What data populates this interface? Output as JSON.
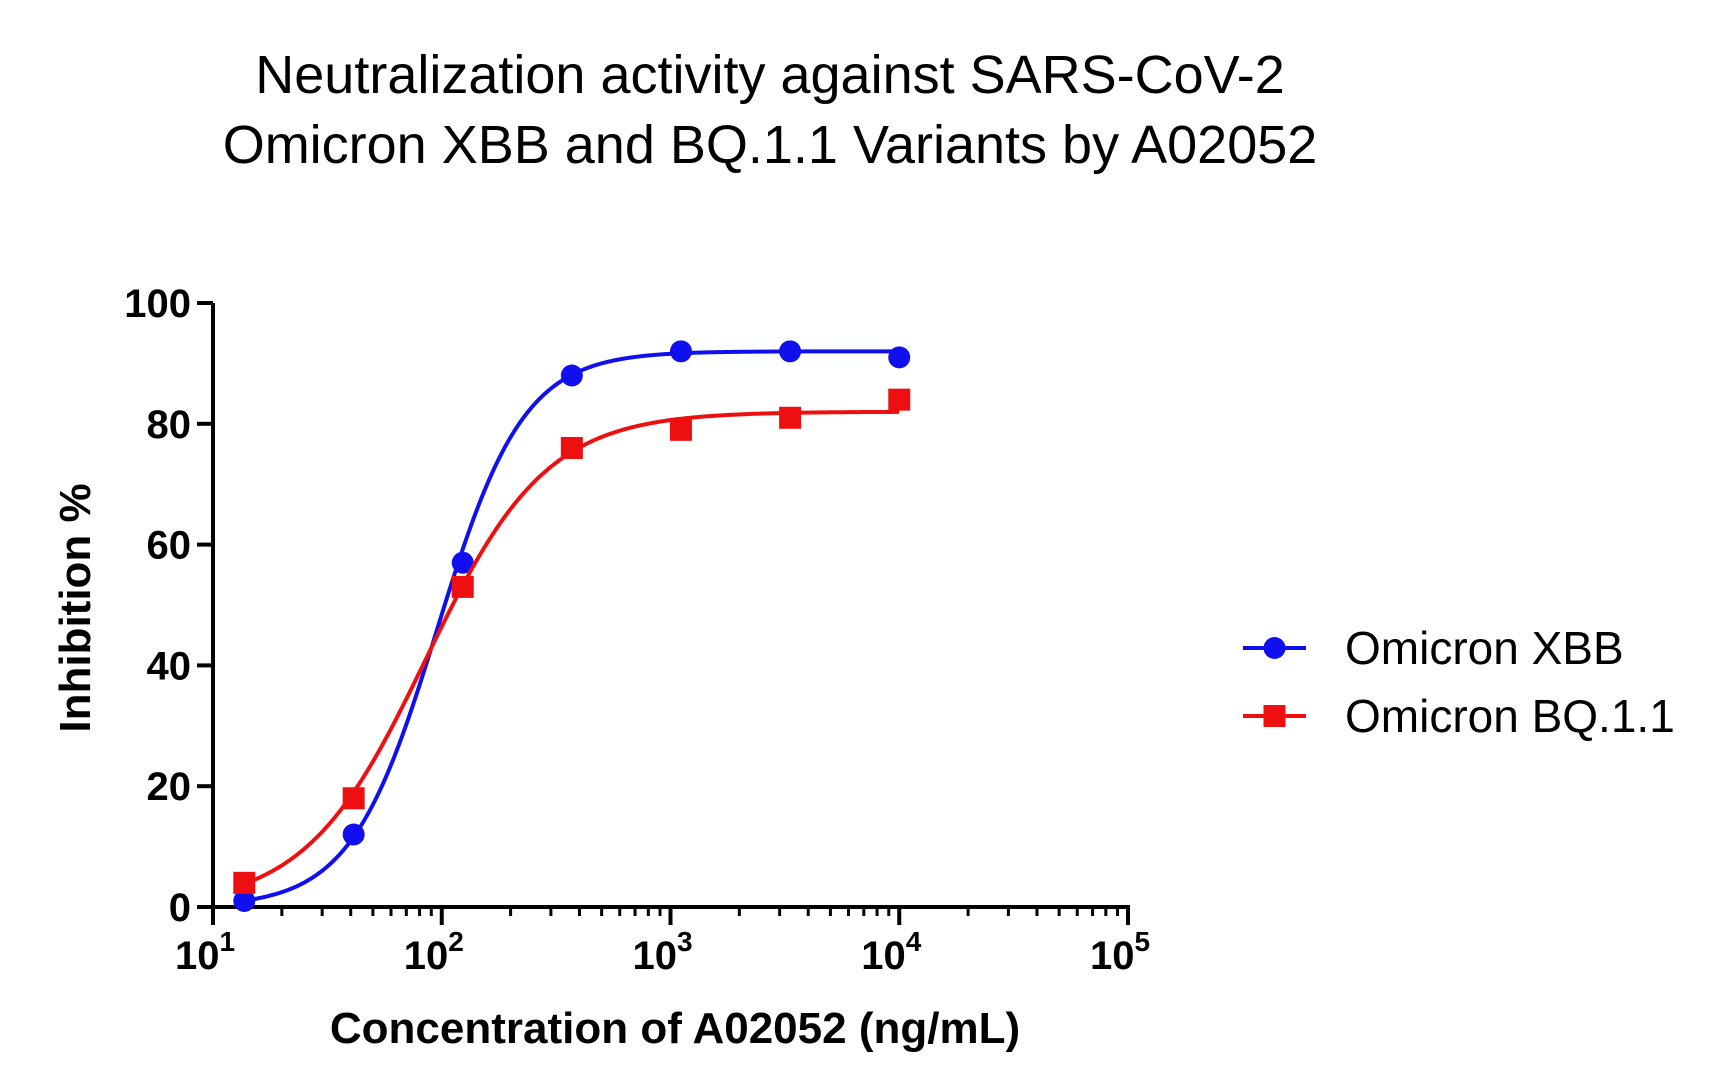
{
  "chart_data": {
    "type": "scatter",
    "title": [
      "Neutralization activity against SARS-CoV-2",
      "Omicron XBB and BQ.1.1 Variants by A02052"
    ],
    "xlabel": "Concentration of A02052 (ng/mL)",
    "ylabel": "Inhibition %",
    "x_scale": "log",
    "xlim": [
      10,
      100000
    ],
    "ylim": [
      0,
      100
    ],
    "x_ticks": [
      {
        "value": 10,
        "base": "10",
        "exp": "1"
      },
      {
        "value": 100,
        "base": "10",
        "exp": "2"
      },
      {
        "value": 1000,
        "base": "10",
        "exp": "3"
      },
      {
        "value": 10000,
        "base": "10",
        "exp": "4"
      },
      {
        "value": 100000,
        "base": "10",
        "exp": "5"
      }
    ],
    "y_ticks": [
      0,
      20,
      40,
      60,
      80,
      100
    ],
    "grid": false,
    "legend_position": "right",
    "series": [
      {
        "name": "Omicron XBB",
        "color": "#1010ee",
        "marker": "circle",
        "x": [
          13.7,
          41.2,
          123.5,
          370.4,
          1111,
          3333,
          10000
        ],
        "y": [
          1,
          12,
          57,
          88,
          92,
          92,
          91
        ],
        "fit": {
          "bottom": 0,
          "top": 92,
          "logEC50": 1.98,
          "hill": 2.3
        }
      },
      {
        "name": "Omicron BQ.1.1",
        "color": "#ee1010",
        "marker": "square",
        "x": [
          13.7,
          41.2,
          123.5,
          370.4,
          1111,
          3333,
          10000
        ],
        "y": [
          4,
          18,
          53,
          76,
          79,
          81,
          84
        ],
        "fit": {
          "bottom": 0,
          "top": 82,
          "logEC50": 1.93,
          "hill": 1.65
        }
      }
    ]
  }
}
